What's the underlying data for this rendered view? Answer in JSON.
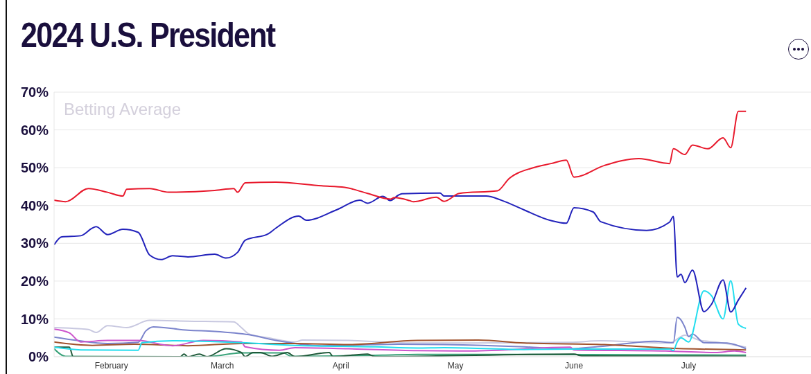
{
  "chart_data": {
    "type": "line",
    "title": "2024 U.S. President",
    "subtitle": "Betting Average",
    "xlim": [
      "2024-01-17",
      "2024-08-02"
    ],
    "xticks": [
      {
        "value": "2024-02-01",
        "label": "February"
      },
      {
        "value": "2024-03-01",
        "label": "March"
      },
      {
        "value": "2024-04-01",
        "label": "April"
      },
      {
        "value": "2024-05-01",
        "label": "May"
      },
      {
        "value": "2024-06-01",
        "label": "June"
      },
      {
        "value": "2024-07-01",
        "label": "July"
      }
    ],
    "ylim": [
      0,
      70
    ],
    "yticks": [
      {
        "value": 0,
        "label": "0%"
      },
      {
        "value": 10,
        "label": "10%"
      },
      {
        "value": 20,
        "label": "20%"
      },
      {
        "value": 30,
        "label": "30%"
      },
      {
        "value": 40,
        "label": "40%"
      },
      {
        "value": 50,
        "label": "50%"
      },
      {
        "value": 60,
        "label": "60%"
      },
      {
        "value": 70,
        "label": "70%"
      }
    ],
    "grid": "y",
    "marker": "none",
    "line_style": "solid",
    "series": [
      {
        "color": "#c8c8e0",
        "x": [
          "2024-01-17",
          "2024-01-26",
          "2024-01-28",
          "2024-01-31",
          "2024-02-05",
          "2024-02-11",
          "2024-02-21",
          "2024-03-04",
          "2024-03-06",
          "2024-03-08",
          "2024-03-13",
          "2024-03-20",
          "2024-03-22",
          "2024-04-03",
          "2024-04-21",
          "2024-05-05",
          "2024-05-31",
          "2024-06-08",
          "2024-06-26",
          "2024-06-30",
          "2024-07-04",
          "2024-07-08",
          "2024-07-16"
        ],
        "values": [
          7.7,
          7.2,
          6.4,
          8.2,
          7.7,
          9.6,
          9.4,
          9.2,
          7.7,
          6,
          5,
          3.9,
          4.4,
          4.3,
          3.6,
          3.6,
          3.8,
          4.2,
          3.6,
          5.7,
          4.3,
          3.9,
          2.5
        ]
      },
      {
        "color": "#7b84cc",
        "x": [
          "2024-01-17",
          "2024-01-23",
          "2024-01-31",
          "2024-02-08",
          "2024-02-10",
          "2024-02-12",
          "2024-02-21",
          "2024-02-28",
          "2024-03-08",
          "2024-03-15",
          "2024-03-27",
          "2024-04-16",
          "2024-04-28",
          "2024-05-19",
          "2024-05-30",
          "2024-06-09",
          "2024-06-22",
          "2024-06-27",
          "2024-06-28",
          "2024-06-29",
          "2024-06-30",
          "2024-07-01",
          "2024-07-02",
          "2024-07-05",
          "2024-07-11",
          "2024-07-16"
        ],
        "values": [
          5.2,
          4.3,
          3.5,
          3.8,
          6.8,
          7.9,
          7,
          6.7,
          5.8,
          4.3,
          2.9,
          3.3,
          3.2,
          2.6,
          2.1,
          2.8,
          4.1,
          3.7,
          10.4,
          9.7,
          7.8,
          5.3,
          6,
          3.7,
          3.6,
          2.1
        ]
      },
      {
        "color": "#a0522d",
        "x": [
          "2024-01-17",
          "2024-01-27",
          "2024-02-07",
          "2024-02-21",
          "2024-03-06",
          "2024-03-20",
          "2024-04-03",
          "2024-04-21",
          "2024-05-07",
          "2024-05-19",
          "2024-06-09",
          "2024-06-25",
          "2024-07-16"
        ],
        "values": [
          3.9,
          3,
          3.3,
          2.9,
          3.5,
          3.5,
          3.2,
          4.3,
          4.4,
          3.6,
          3.2,
          2.3,
          1.8
        ]
      },
      {
        "color": "#cc55cc",
        "x": [
          "2024-01-17",
          "2024-01-21",
          "2024-01-24",
          "2024-01-31",
          "2024-02-08",
          "2024-02-17",
          "2024-02-25",
          "2024-03-06",
          "2024-03-07",
          "2024-03-16",
          "2024-03-20",
          "2024-04-03",
          "2024-04-21",
          "2024-05-05",
          "2024-05-31",
          "2024-06-01",
          "2024-06-25",
          "2024-07-08",
          "2024-07-13",
          "2024-07-16"
        ],
        "values": [
          7.3,
          6.3,
          3.9,
          4.3,
          4.3,
          2.9,
          4.3,
          3.9,
          2.6,
          1.7,
          2.4,
          2.1,
          1.6,
          1.5,
          2.5,
          1.8,
          1.5,
          1.1,
          1.5,
          1.1
        ]
      },
      {
        "color": "#3aa37a",
        "x": [
          "2024-01-17",
          "2024-01-20",
          "2024-02-26",
          "2024-03-06",
          "2024-03-17",
          "2024-03-19",
          "2024-04-12",
          "2024-04-21",
          "2024-05-19",
          "2024-07-16"
        ],
        "values": [
          2.1,
          0.1,
          0,
          1,
          1,
          0.1,
          0.4,
          0.6,
          0.6,
          0.4
        ]
      },
      {
        "color": "#1f5a3a",
        "x": [
          "2024-01-17",
          "2024-01-21",
          "2024-01-22",
          "2024-02-19",
          "2024-02-20",
          "2024-02-21",
          "2024-02-24",
          "2024-02-26",
          "2024-03-02",
          "2024-03-06",
          "2024-03-07",
          "2024-03-09",
          "2024-03-11",
          "2024-03-14",
          "2024-03-18",
          "2024-03-20",
          "2024-03-29",
          "2024-03-30",
          "2024-04-08",
          "2024-04-10",
          "2024-06-01",
          "2024-06-03",
          "2024-07-16"
        ],
        "values": [
          2.5,
          2.5,
          0,
          0,
          0.7,
          0,
          0.7,
          0,
          2.1,
          1.1,
          0,
          1.1,
          1.1,
          0.1,
          1.1,
          0,
          1.1,
          0,
          0.7,
          0,
          0.7,
          0.2,
          0.1
        ]
      },
      {
        "color": "#22ddee",
        "x": [
          "2024-01-17",
          "2024-01-24",
          "2024-02-08",
          "2024-02-09",
          "2024-02-17",
          "2024-03-06",
          "2024-03-20",
          "2024-04-10",
          "2024-04-21",
          "2024-04-28",
          "2024-05-19",
          "2024-06-02",
          "2024-06-26",
          "2024-06-27",
          "2024-06-28",
          "2024-06-29",
          "2024-07-01",
          "2024-07-05",
          "2024-07-07",
          "2024-07-10",
          "2024-07-12",
          "2024-07-14",
          "2024-07-16"
        ],
        "values": [
          2.5,
          1.8,
          1.7,
          3.7,
          4.2,
          3.7,
          3,
          2.6,
          2.3,
          2.4,
          1.9,
          2,
          2,
          1.6,
          3.9,
          5,
          3.9,
          17.4,
          16.1,
          10,
          20.1,
          8.6,
          7.5
        ]
      },
      {
        "color": "#2222bb",
        "x": [
          "2024-01-17",
          "2024-01-19",
          "2024-01-24",
          "2024-01-27",
          "2024-01-28",
          "2024-01-31",
          "2024-02-04",
          "2024-02-08",
          "2024-02-11",
          "2024-02-14",
          "2024-02-17",
          "2024-02-21",
          "2024-02-28",
          "2024-03-02",
          "2024-03-05",
          "2024-03-07",
          "2024-03-13",
          "2024-03-15",
          "2024-03-21",
          "2024-03-23",
          "2024-03-31",
          "2024-04-06",
          "2024-04-08",
          "2024-04-12",
          "2024-04-14",
          "2024-04-16",
          "2024-04-17",
          "2024-04-27",
          "2024-04-28",
          "2024-05-09",
          "2024-05-13",
          "2024-05-19",
          "2024-05-26",
          "2024-05-30",
          "2024-06-01",
          "2024-06-06",
          "2024-06-08",
          "2024-06-20",
          "2024-06-26",
          "2024-06-27",
          "2024-06-28",
          "2024-06-29",
          "2024-06-30",
          "2024-07-02",
          "2024-07-05",
          "2024-07-07",
          "2024-07-10",
          "2024-07-12",
          "2024-07-14",
          "2024-07-16"
        ],
        "values": [
          29.6,
          31.7,
          32,
          34,
          34.4,
          32.3,
          33.7,
          32.9,
          26.9,
          25.7,
          26.7,
          26.4,
          27.1,
          26.1,
          27.6,
          30.8,
          32.5,
          34,
          37.2,
          36.1,
          38.9,
          41.4,
          40.6,
          42.4,
          41.3,
          42.7,
          43.1,
          43.3,
          42.5,
          42.5,
          41.4,
          38.8,
          36,
          35.3,
          39.4,
          38.3,
          35.7,
          33.4,
          35.6,
          37.1,
          21.1,
          21.8,
          19.6,
          22.9,
          11.9,
          13.9,
          20.3,
          11.8,
          15,
          18.2
        ]
      },
      {
        "color": "#e8192c",
        "x": [
          "2024-01-17",
          "2024-01-20",
          "2024-01-26",
          "2024-01-31",
          "2024-02-04",
          "2024-02-05",
          "2024-02-11",
          "2024-02-16",
          "2024-02-28",
          "2024-03-04",
          "2024-03-05",
          "2024-03-07",
          "2024-03-15",
          "2024-03-27",
          "2024-04-02",
          "2024-04-08",
          "2024-04-14",
          "2024-04-15",
          "2024-04-19",
          "2024-04-20",
          "2024-04-26",
          "2024-04-28",
          "2024-05-02",
          "2024-05-12",
          "2024-05-15",
          "2024-05-21",
          "2024-05-26",
          "2024-05-30",
          "2024-06-01",
          "2024-06-09",
          "2024-06-18",
          "2024-06-26",
          "2024-06-27",
          "2024-06-30",
          "2024-07-02",
          "2024-07-06",
          "2024-07-10",
          "2024-07-12",
          "2024-07-14",
          "2024-07-16"
        ],
        "values": [
          41.4,
          41,
          44.5,
          43.5,
          42.5,
          44.3,
          44.5,
          43.5,
          44,
          44.5,
          43.5,
          46,
          46.2,
          45.2,
          44.8,
          43.2,
          41.7,
          42.1,
          41.3,
          41,
          42.2,
          41.1,
          43.2,
          43.9,
          47.1,
          49.9,
          51.1,
          52,
          47.5,
          50.6,
          52.4,
          51.1,
          55,
          53.5,
          56,
          55,
          57.9,
          55.3,
          64.9,
          64.9
        ]
      }
    ]
  }
}
